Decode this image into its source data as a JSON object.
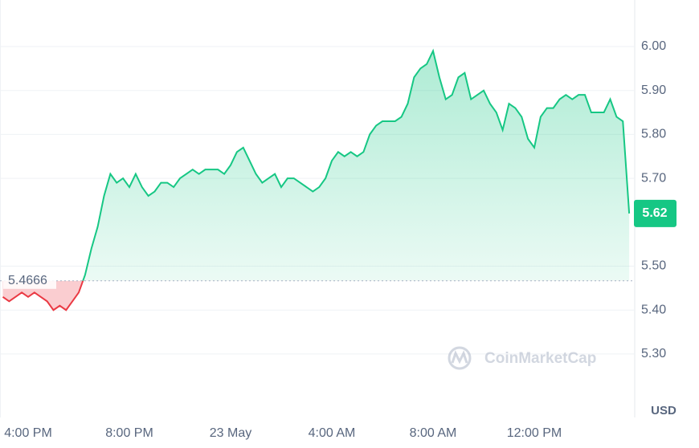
{
  "chart_data": {
    "type": "line",
    "series": [
      {
        "color": "#16c784",
        "values": [
          5.43,
          5.42,
          5.43,
          5.44,
          5.43,
          5.44,
          5.43,
          5.42,
          5.4,
          5.41,
          5.4,
          5.42,
          5.44,
          5.48,
          5.54,
          5.59,
          5.66,
          5.71,
          5.69,
          5.7,
          5.68,
          5.71,
          5.68,
          5.66,
          5.67,
          5.69,
          5.69,
          5.68,
          5.7,
          5.71,
          5.72,
          5.71,
          5.72,
          5.72,
          5.72,
          5.71,
          5.73,
          5.76,
          5.77,
          5.74,
          5.71,
          5.69,
          5.7,
          5.71,
          5.68,
          5.7,
          5.7,
          5.69,
          5.68,
          5.67,
          5.68,
          5.7,
          5.74,
          5.76,
          5.75,
          5.76,
          5.75,
          5.76,
          5.8,
          5.82,
          5.83,
          5.83,
          5.83,
          5.84,
          5.87,
          5.93,
          5.95,
          5.96,
          5.99,
          5.93,
          5.88,
          5.89,
          5.93,
          5.94,
          5.88,
          5.89,
          5.9,
          5.87,
          5.85,
          5.81,
          5.87,
          5.86,
          5.84,
          5.79,
          5.77,
          5.84,
          5.86,
          5.86,
          5.88,
          5.89,
          5.88,
          5.89,
          5.89,
          5.85,
          5.85,
          5.85,
          5.88,
          5.84,
          5.83,
          5.62
        ]
      }
    ],
    "categories": [
      null,
      null,
      null,
      null,
      "4:00 PM",
      null,
      null,
      null,
      null,
      null,
      null,
      null,
      null,
      null,
      null,
      null,
      null,
      null,
      null,
      null,
      "8:00 PM",
      null,
      null,
      null,
      null,
      null,
      null,
      null,
      null,
      null,
      null,
      null,
      null,
      null,
      null,
      null,
      "23 May",
      null,
      null,
      null,
      null,
      null,
      null,
      null,
      null,
      null,
      null,
      null,
      null,
      null,
      null,
      null,
      "4:00 AM",
      null,
      null,
      null,
      null,
      null,
      null,
      null,
      null,
      null,
      null,
      null,
      null,
      null,
      null,
      null,
      "8:00 AM",
      null,
      null,
      null,
      null,
      null,
      null,
      null,
      null,
      null,
      null,
      null,
      null,
      null,
      null,
      null,
      "12:00 PM",
      null,
      null,
      null,
      null,
      null,
      null,
      null,
      null,
      null,
      null,
      null,
      null,
      null,
      null,
      null
    ],
    "baseline": 5.4666,
    "up_color": "#16c784",
    "down_color": "#ea3943",
    "ylim": [
      5.16,
      6.1
    ],
    "yticks": [
      {
        "value": 5.3,
        "label": "5.30"
      },
      {
        "value": 5.4,
        "label": "5.40"
      },
      {
        "value": 5.5,
        "label": "5.50"
      },
      {
        "value": 5.7,
        "label": "5.70"
      },
      {
        "value": 5.8,
        "label": "5.80"
      },
      {
        "value": 5.9,
        "label": "5.90"
      },
      {
        "value": 6,
        "label": "6.00"
      }
    ],
    "grid": true,
    "y_axis_label": "USD",
    "watermark": "CoinMarketCap"
  }
}
